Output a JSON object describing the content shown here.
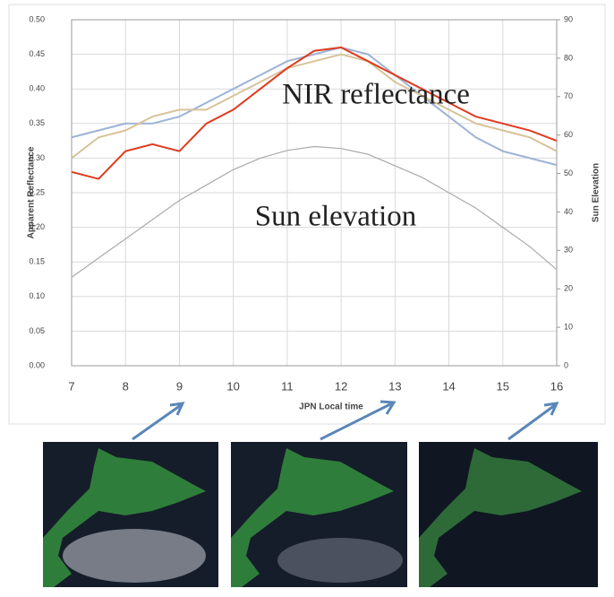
{
  "chart_data": {
    "type": "line",
    "x_label": "JPN Local time",
    "y_label": "Apparent Reflectance",
    "y2_label": "Sun Elevation",
    "annotations": [
      "NIR reflectance",
      "Sun elevation"
    ],
    "x": [
      7,
      7.5,
      8,
      8.5,
      9,
      9.5,
      10,
      10.5,
      11,
      11.5,
      12,
      12.5,
      13,
      13.5,
      14,
      14.5,
      15,
      15.5,
      16
    ],
    "series": [
      {
        "color": "#9db3d6",
        "values": [
          0.33,
          0.34,
          0.35,
          0.35,
          0.36,
          0.38,
          0.4,
          0.42,
          0.44,
          0.45,
          0.46,
          0.45,
          0.42,
          0.39,
          0.36,
          0.33,
          0.31,
          0.3,
          0.29
        ]
      },
      {
        "color": "#d8c39a",
        "values": [
          0.3,
          0.33,
          0.34,
          0.36,
          0.37,
          0.37,
          0.39,
          0.41,
          0.43,
          0.44,
          0.45,
          0.44,
          0.41,
          0.39,
          0.37,
          0.35,
          0.34,
          0.33,
          0.31
        ]
      },
      {
        "color": "#e03a1e",
        "values": [
          0.28,
          0.27,
          0.31,
          0.32,
          0.31,
          0.35,
          0.37,
          0.4,
          0.43,
          0.455,
          0.46,
          0.44,
          0.42,
          0.4,
          0.38,
          0.36,
          0.35,
          0.34,
          0.325
        ]
      },
      {
        "color": "#aaaaaa",
        "axis": "y2",
        "values": [
          23,
          28,
          33,
          38,
          43,
          47,
          51,
          54,
          56,
          57,
          56.5,
          55,
          52,
          49,
          45,
          41,
          36,
          31,
          25
        ]
      }
    ],
    "xlim": [
      7,
      16
    ],
    "xticks": [
      7,
      8,
      9,
      10,
      11,
      12,
      13,
      14,
      15,
      16
    ],
    "ylim": [
      0,
      0.5
    ],
    "yticks": [
      {
        "value": 0,
        "label": "0.00"
      },
      {
        "value": 0.05,
        "label": "0.05"
      },
      {
        "value": 0.1,
        "label": "0.10"
      },
      {
        "value": 0.15,
        "label": "0.15"
      },
      {
        "value": 0.2,
        "label": "0.20"
      },
      {
        "value": 0.25,
        "label": "0.25"
      },
      {
        "value": 0.3,
        "label": "0.30"
      },
      {
        "value": 0.35,
        "label": "0.35"
      },
      {
        "value": 0.4,
        "label": "0.40"
      },
      {
        "value": 0.45,
        "label": "0.45"
      },
      {
        "value": 0.5,
        "label": "0.50"
      }
    ],
    "y2lim": [
      0,
      90
    ],
    "y2ticks": [
      0,
      10,
      20,
      30,
      40,
      50,
      60,
      70,
      80,
      90
    ],
    "grid": true
  }
}
